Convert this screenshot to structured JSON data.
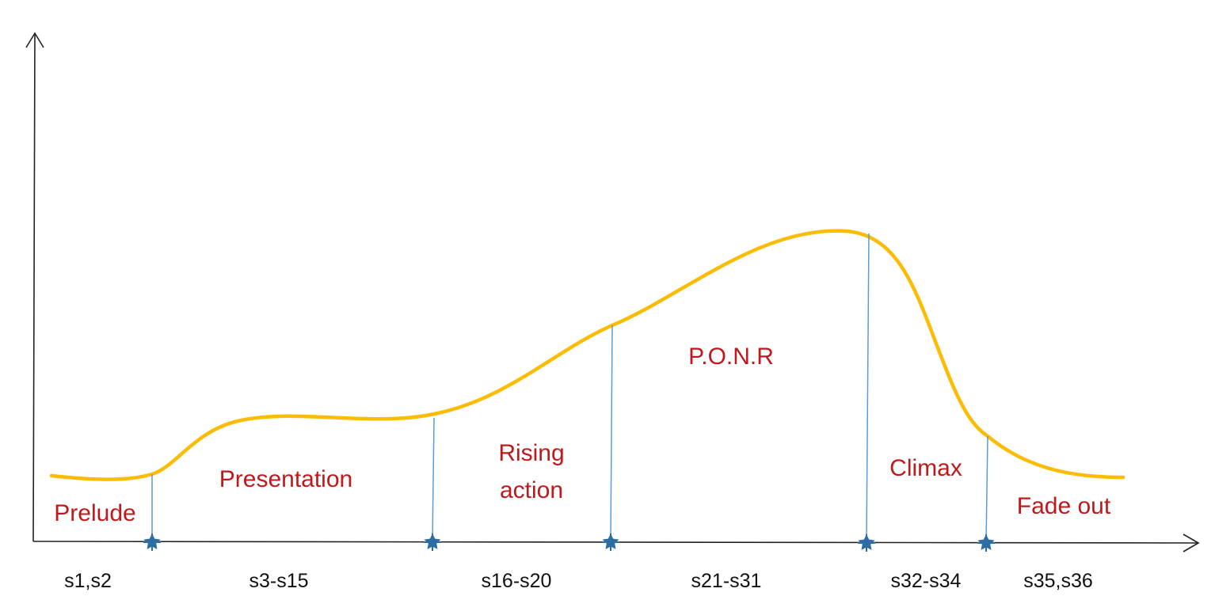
{
  "diagram": {
    "phases": [
      {
        "name": "Prelude",
        "scenes": "s1,s2"
      },
      {
        "name": "Presentation",
        "scenes": "s3-s15"
      },
      {
        "name_lines": [
          "Rising",
          "action"
        ],
        "scenes": "s16-s20"
      },
      {
        "name": "P.O.N.R",
        "scenes": "s21-s31"
      },
      {
        "name": "Climax",
        "scenes": "s32-s34"
      },
      {
        "name": "Fade out",
        "scenes": "s35,s36"
      }
    ],
    "colors": {
      "curve": "#fbbc05",
      "phase_text": "#c0191c",
      "scene_text": "#111111",
      "divider": "#5b9bd5",
      "marker": "#2e6ca4",
      "axis": "#222222"
    }
  }
}
